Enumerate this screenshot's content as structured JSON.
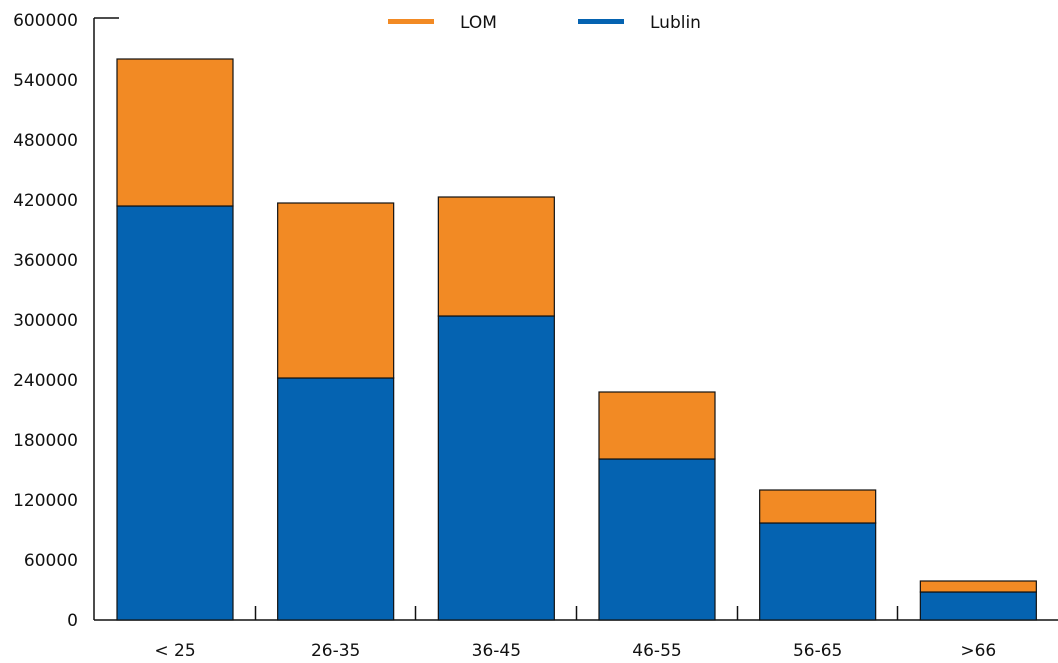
{
  "chart_data": {
    "type": "bar",
    "stacked": true,
    "categories": [
      "< 25",
      "26-35",
      "36-45",
      "46-55",
      "56-65",
      ">66"
    ],
    "series": [
      {
        "name": "Lublin",
        "color": "#0563b1",
        "values": [
          414000,
          242000,
          304000,
          161000,
          97000,
          28000
        ]
      },
      {
        "name": "LOM",
        "color": "#f28a24",
        "values": [
          147000,
          175000,
          119000,
          67000,
          33000,
          11000
        ]
      }
    ],
    "yticks": [
      "0",
      "60000",
      "120000",
      "180000",
      "240000",
      "300000",
      "360000",
      "420000",
      "480000",
      "540000",
      "600000"
    ],
    "ylim": [
      0,
      600000
    ],
    "legend_position": "top-center",
    "grid": false
  }
}
